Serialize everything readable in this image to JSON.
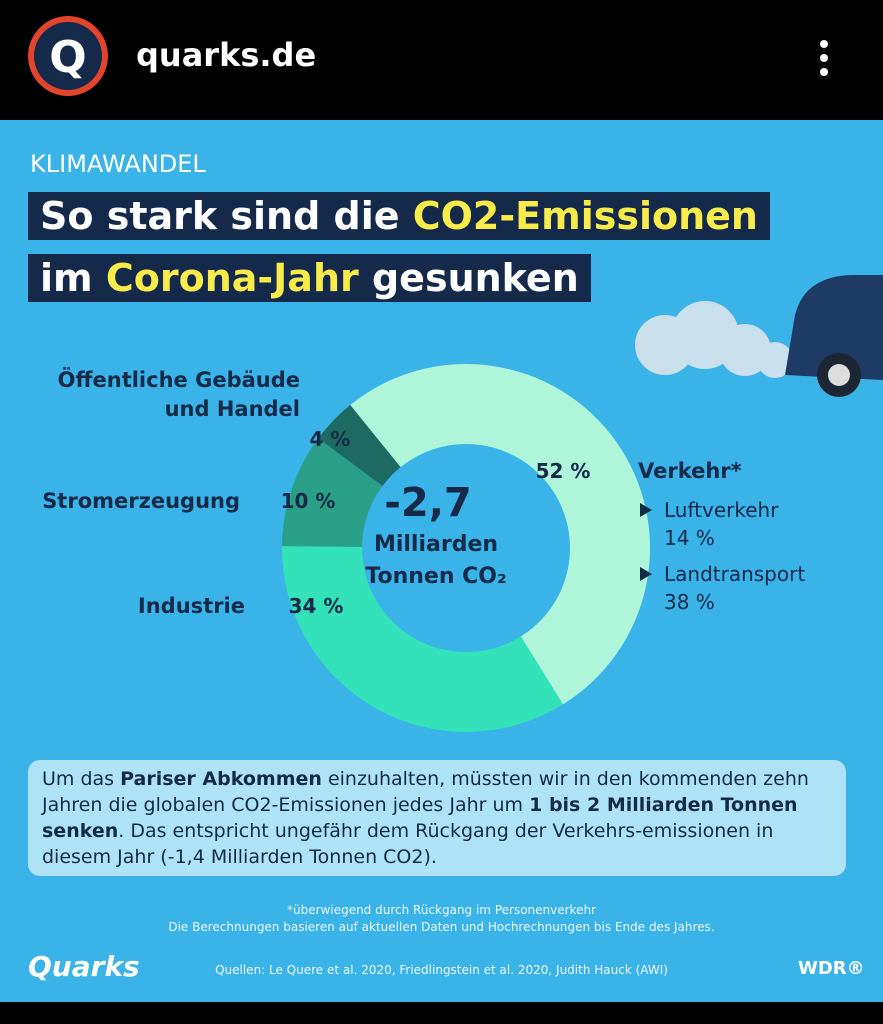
{
  "header": {
    "site": "quarks.de"
  },
  "kicker": "KLIMAWANDEL",
  "title_lines": [
    [
      {
        "text": "So stark sind die ",
        "highlight": false
      },
      {
        "text": "CO2-Emissionen",
        "highlight": true
      }
    ],
    [
      {
        "text": "im ",
        "highlight": false
      },
      {
        "text": "Corona-Jahr",
        "highlight": true
      },
      {
        "text": " gesunken",
        "highlight": false
      }
    ]
  ],
  "chart_data": {
    "type": "pie",
    "donut": true,
    "categories": [
      "Verkehr*",
      "Industrie",
      "Stromerzeugung",
      "Öffentliche Gebäude und Handel"
    ],
    "values": [
      52,
      34,
      10,
      4
    ],
    "value_labels": [
      "52 %",
      "34 %",
      "10 %",
      "4 %"
    ],
    "colors": [
      "#aef5d9",
      "#33e2b8",
      "#2a9f88",
      "#1d6a62"
    ],
    "center_value": "-2,7",
    "center_label": [
      "Milliarden",
      "Tonnen CO₂"
    ],
    "breakdown": [
      {
        "name": "Luftverkehr",
        "value_label": "14 %"
      },
      {
        "name": "Landtransport",
        "value_label": "38 %"
      }
    ]
  },
  "note": [
    {
      "text": "Um das ",
      "bold": false
    },
    {
      "text": "Pariser Abkommen",
      "bold": true
    },
    {
      "text": " einzuhalten, müssten wir in den kommenden zehn Jahren die globalen CO2-Emissionen jedes Jahr um ",
      "bold": false
    },
    {
      "text": "1 bis 2 Milliarden Tonnen senken",
      "bold": true
    },
    {
      "text": ". Das entspricht ungefähr dem Rückgang der Verkehrs-emissionen in diesem Jahr (-1,4 Milliarden Tonnen CO2).",
      "bold": false
    }
  ],
  "footnotes": [
    "*überwiegend durch Rückgang im Personenverkehr",
    "Die Berechnungen basieren auf aktuellen Daten und Hochrechnungen bis Ende des Jahres."
  ],
  "sources": "Quellen: Le Quere et al. 2020, Friedlingstein et al. 2020, Judith Hauck (AWI)",
  "brand_left": "Quarks",
  "brand_right": "WDR®"
}
